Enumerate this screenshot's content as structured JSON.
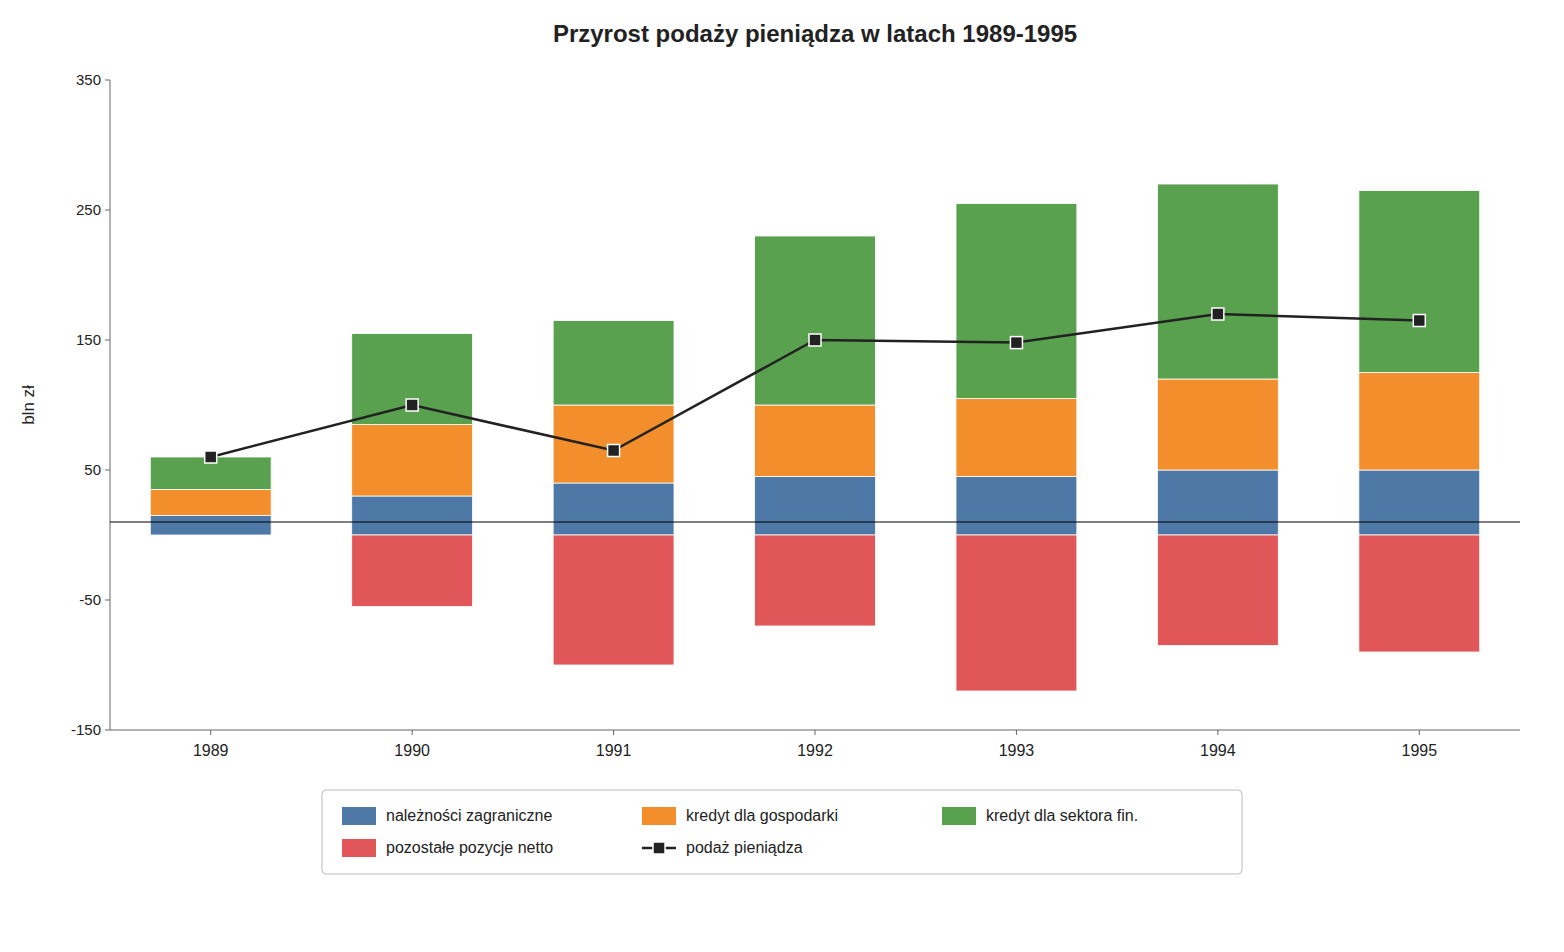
{
  "chart_data": {
    "type": "bar",
    "stacked": true,
    "title": "Przyrost  podaży  pieniądza  w  latach  1989-1995",
    "y_label": "bln zł",
    "categories": [
      "1989",
      "1990",
      "1991",
      "1992",
      "1993",
      "1994",
      "1995"
    ],
    "series": [
      {
        "name": "należności zagraniczne",
        "type": "bar",
        "color": "#4e79a7",
        "values": [
          15,
          30,
          40,
          45,
          45,
          50,
          50
        ]
      },
      {
        "name": "kredyt dla gospodarki",
        "type": "bar",
        "color": "#f28e2b",
        "values": [
          20,
          55,
          60,
          55,
          60,
          70,
          75
        ]
      },
      {
        "name": "kredyt dla sektora fin.",
        "type": "bar",
        "color": "#59a14f",
        "values": [
          25,
          70,
          65,
          130,
          150,
          150,
          140
        ]
      },
      {
        "name": "pozostałe pozycje netto",
        "type": "bar",
        "color": "#e15759",
        "values": [
          0,
          -55,
          -100,
          -70,
          -120,
          -85,
          -90
        ]
      },
      {
        "name": "podaż pieniądza",
        "type": "line",
        "color": "#222222",
        "marker": "square",
        "values": [
          60,
          100,
          65,
          150,
          148,
          170,
          165
        ]
      }
    ],
    "hline": 10,
    "ylim": [
      -150,
      350
    ],
    "yticks": [
      -150,
      -50,
      50,
      150,
      250,
      350
    ],
    "grid": false,
    "legend": "bottom"
  }
}
